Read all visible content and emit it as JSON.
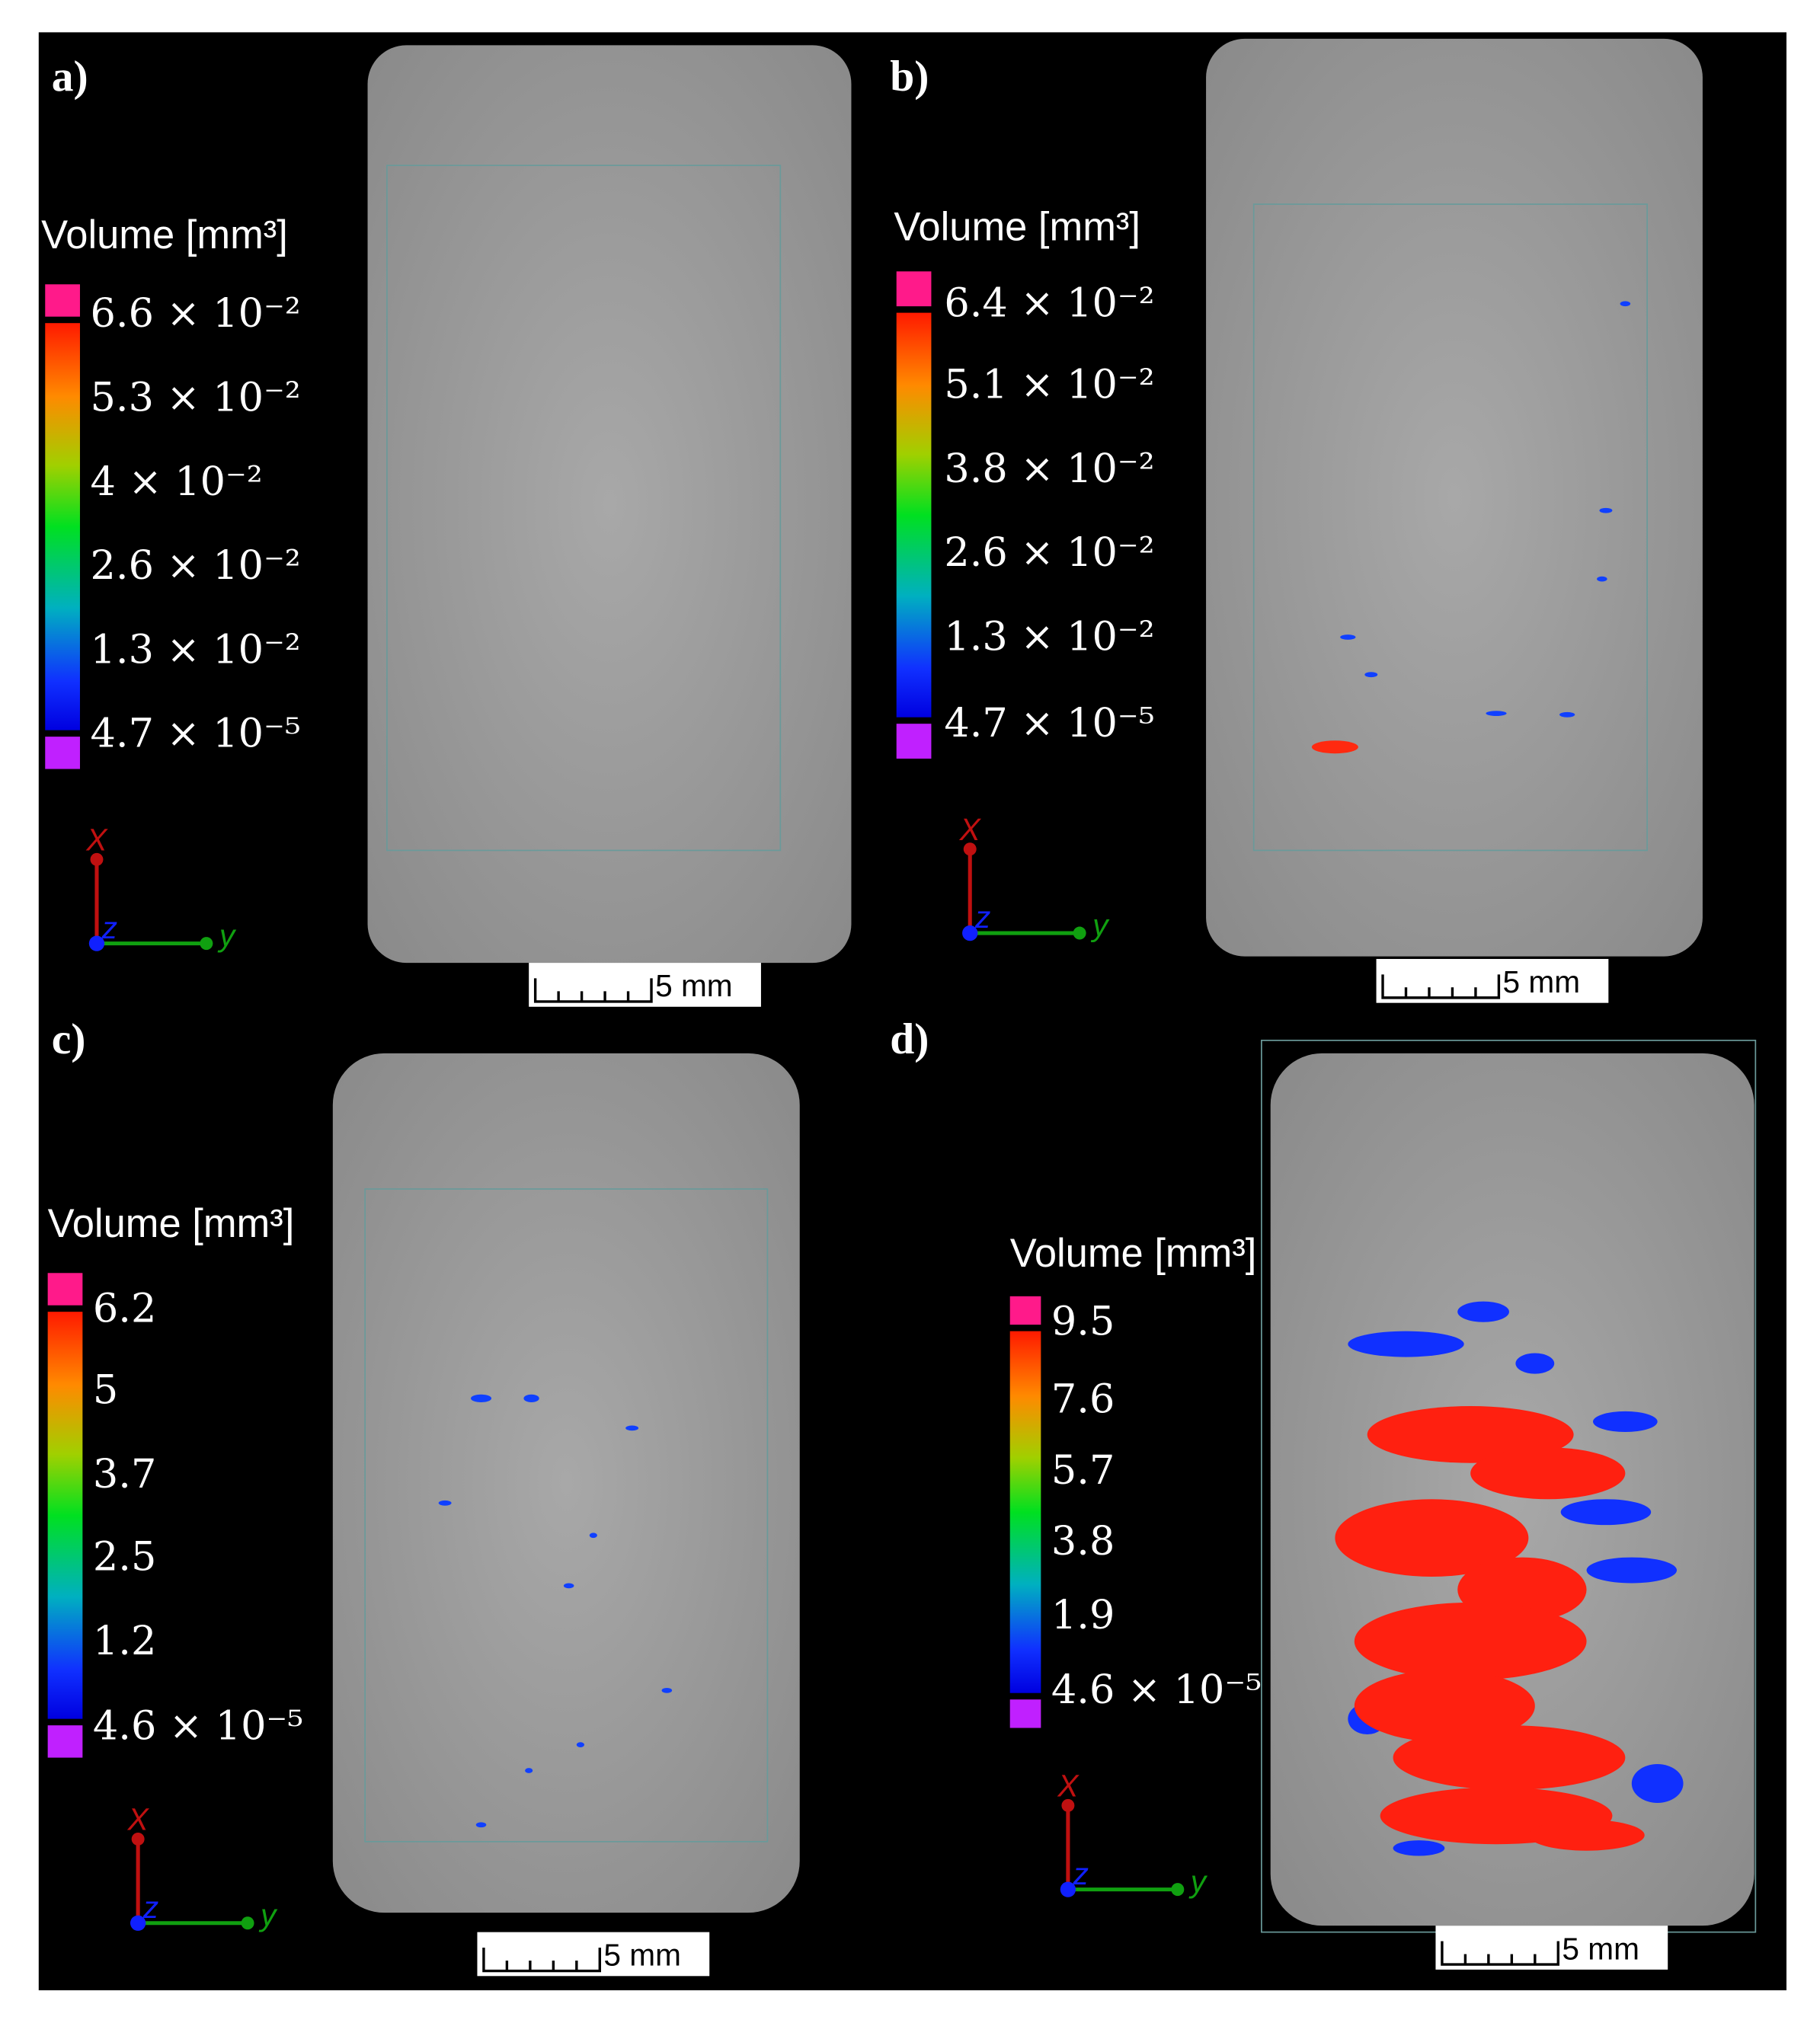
{
  "panels": [
    {
      "label": "a)",
      "legend_title": "Volume [mm³]",
      "legend_labels": [
        "6.6 × 10⁻²",
        "5.3 × 10⁻²",
        "4 × 10⁻²",
        "2.6 × 10⁻²",
        "1.3 × 10⁻²",
        "4.7 × 10⁻⁵"
      ],
      "axes": {
        "x": "X",
        "y": "y",
        "z": "z"
      },
      "scale_bar": "5 mm"
    },
    {
      "label": "b)",
      "legend_title": "Volume [mm³]",
      "legend_labels": [
        "6.4 × 10⁻²",
        "5.1 × 10⁻²",
        "3.8 × 10⁻²",
        "2.6 × 10⁻²",
        "1.3 × 10⁻²",
        "4.7 × 10⁻⁵"
      ],
      "axes": {
        "x": "X",
        "y": "y",
        "z": "z"
      },
      "scale_bar": "5 mm"
    },
    {
      "label": "c)",
      "legend_title": "Volume [mm³]",
      "legend_labels": [
        "6.2",
        "5",
        "3.7",
        "2.5",
        "1.2",
        "4.6 × 10⁻⁵"
      ],
      "axes": {
        "x": "X",
        "y": "y",
        "z": "z"
      },
      "scale_bar": "5 mm"
    },
    {
      "label": "d)",
      "legend_title": "Volume [mm³]",
      "legend_labels": [
        "9.5",
        "7.6",
        "5.7",
        "3.8",
        "1.9",
        "4.6 × 10⁻⁵"
      ],
      "axes": {
        "x": "X",
        "y": "y",
        "z": "z"
      },
      "scale_bar": "5 mm"
    }
  ]
}
